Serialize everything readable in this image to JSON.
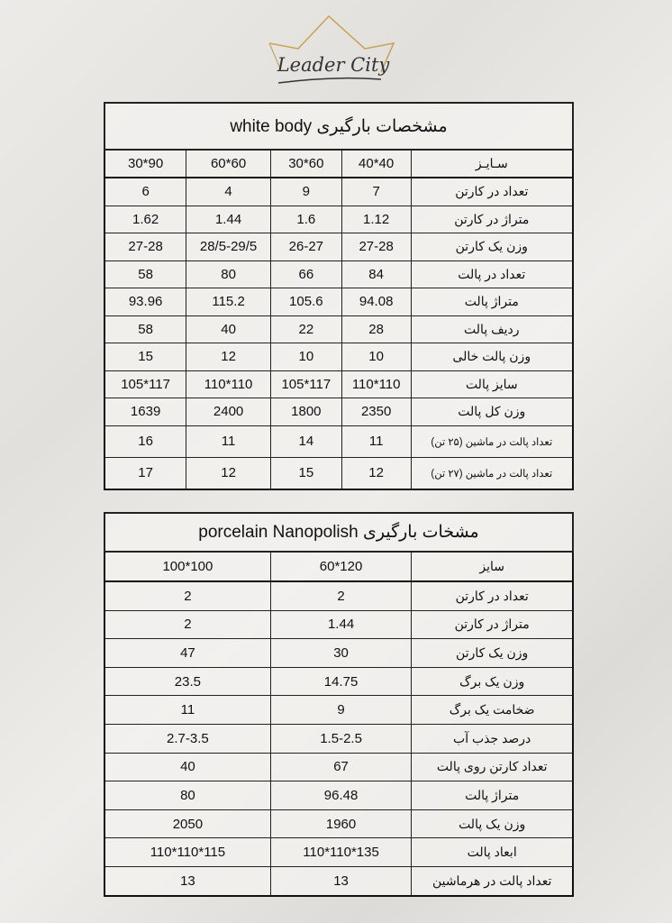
{
  "logo": {
    "text": "Leader City",
    "accent": "#c9a65a"
  },
  "table1": {
    "title": "مشخصات بارگیری white body",
    "header": {
      "label": "سـایـز",
      "sizes": [
        "40*40",
        "30*60",
        "60*60",
        "30*90"
      ]
    },
    "rows": [
      {
        "label": "تعداد در کارتن",
        "values": [
          "7",
          "9",
          "4",
          "6"
        ]
      },
      {
        "label": "متراژ در کارتن",
        "values": [
          "1.12",
          "1.6",
          "1.44",
          "1.62"
        ]
      },
      {
        "label": "وزن یک کارتن",
        "values": [
          "27-28",
          "26-27",
          "28/5-29/5",
          "27-28"
        ]
      },
      {
        "label": "تعداد در پالت",
        "values": [
          "84",
          "66",
          "80",
          "58"
        ]
      },
      {
        "label": "متراژ پالت",
        "values": [
          "94.08",
          "105.6",
          "115.2",
          "93.96"
        ]
      },
      {
        "label": "ردیف پالت",
        "values": [
          "28",
          "22",
          "40",
          "58"
        ]
      },
      {
        "label": "وزن پالت خالی",
        "values": [
          "10",
          "10",
          "12",
          "15"
        ]
      },
      {
        "label": "سایز پالت",
        "values": [
          "110*110",
          "105*117",
          "110*110",
          "105*117"
        ]
      },
      {
        "label": "وزن کل پالت",
        "values": [
          "2350",
          "1800",
          "2400",
          "1639"
        ]
      },
      {
        "label": "تعداد پالت در ماشین   (۲۵ تن)",
        "values": [
          "11",
          "14",
          "11",
          "16"
        ]
      },
      {
        "label": "تعداد پالت در ماشین   (۲۷ تن)",
        "values": [
          "12",
          "15",
          "12",
          "17"
        ]
      }
    ]
  },
  "table2": {
    "title": "مشخات بارگیری porcelain Nanopolish",
    "header": {
      "label": "سایز",
      "sizes": [
        "60*120",
        "100*100"
      ]
    },
    "rows": [
      {
        "label": "تعداد در کارتن",
        "values": [
          "2",
          "2"
        ]
      },
      {
        "label": "متراژ در کارتن",
        "values": [
          "1.44",
          "2"
        ]
      },
      {
        "label": "وزن یک کارتن",
        "values": [
          "30",
          "47"
        ]
      },
      {
        "label": "وزن یک برگ",
        "values": [
          "14.75",
          "23.5"
        ]
      },
      {
        "label": "ضخامت یک برگ",
        "values": [
          "9",
          "11"
        ]
      },
      {
        "label": "درصد جذب آب",
        "values": [
          "1.5-2.5",
          "2.7-3.5"
        ]
      },
      {
        "label": "تعداد کارتن روی پالت",
        "values": [
          "67",
          "40"
        ]
      },
      {
        "label": "متراژ پالت",
        "values": [
          "96.48",
          "80"
        ]
      },
      {
        "label": "وزن یک پالت",
        "values": [
          "1960",
          "2050"
        ]
      },
      {
        "label": "ابعاد پالت",
        "values": [
          "110*110*135",
          "110*110*115"
        ]
      },
      {
        "label": "تعداد پالت در هرماشین",
        "values": [
          "13",
          "13"
        ]
      }
    ]
  }
}
